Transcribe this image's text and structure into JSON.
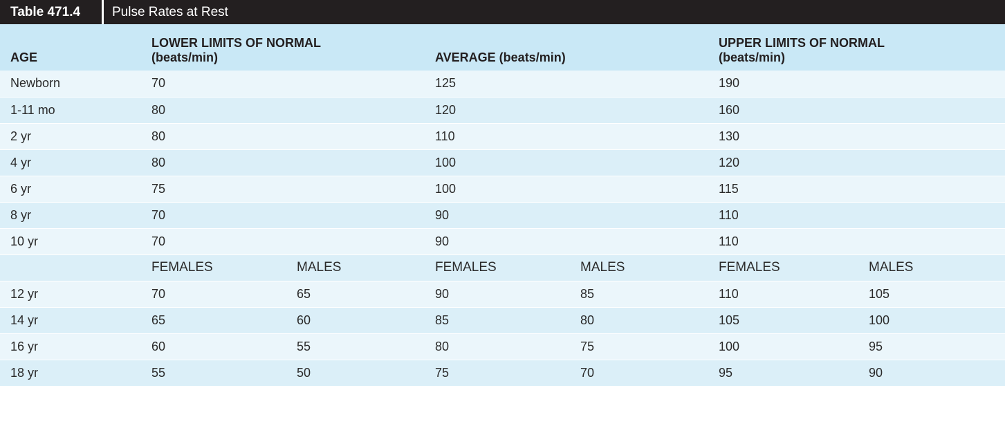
{
  "table_label": "Table 471.4",
  "table_title": "Pulse Rates at Rest",
  "headers": {
    "age": "AGE",
    "lower": "LOWER LIMITS OF NORMAL",
    "lower_unit": "(beats/min)",
    "average": "AVERAGE (beats/min)",
    "upper": "UPPER LIMITS OF NORMAL",
    "upper_unit": "(beats/min)"
  },
  "rows": [
    {
      "age": "Newborn",
      "lower": "70",
      "average": "125",
      "upper": "190"
    },
    {
      "age": "1-11 mo",
      "lower": "80",
      "average": "120",
      "upper": "160"
    },
    {
      "age": "2 yr",
      "lower": "80",
      "average": "110",
      "upper": "130"
    },
    {
      "age": "4 yr",
      "lower": "80",
      "average": "100",
      "upper": "120"
    },
    {
      "age": "6 yr",
      "lower": "75",
      "average": "100",
      "upper": "115"
    },
    {
      "age": "8 yr",
      "lower": "70",
      "average": "90",
      "upper": "110"
    },
    {
      "age": "10 yr",
      "lower": "70",
      "average": "90",
      "upper": "110"
    }
  ],
  "subheaders": {
    "females": "FEMALES",
    "males": "MALES"
  },
  "sex_rows": [
    {
      "age": "12 yr",
      "lower_f": "70",
      "lower_m": "65",
      "avg_f": "90",
      "avg_m": "85",
      "upper_f": "110",
      "upper_m": "105"
    },
    {
      "age": "14 yr",
      "lower_f": "65",
      "lower_m": "60",
      "avg_f": "85",
      "avg_m": "80",
      "upper_f": "105",
      "upper_m": "100"
    },
    {
      "age": "16 yr",
      "lower_f": "60",
      "lower_m": "55",
      "avg_f": "80",
      "avg_m": "75",
      "upper_f": "100",
      "upper_m": "95"
    },
    {
      "age": "18 yr",
      "lower_f": "55",
      "lower_m": "50",
      "avg_f": "75",
      "avg_m": "70",
      "upper_f": "95",
      "upper_m": "90"
    }
  ]
}
